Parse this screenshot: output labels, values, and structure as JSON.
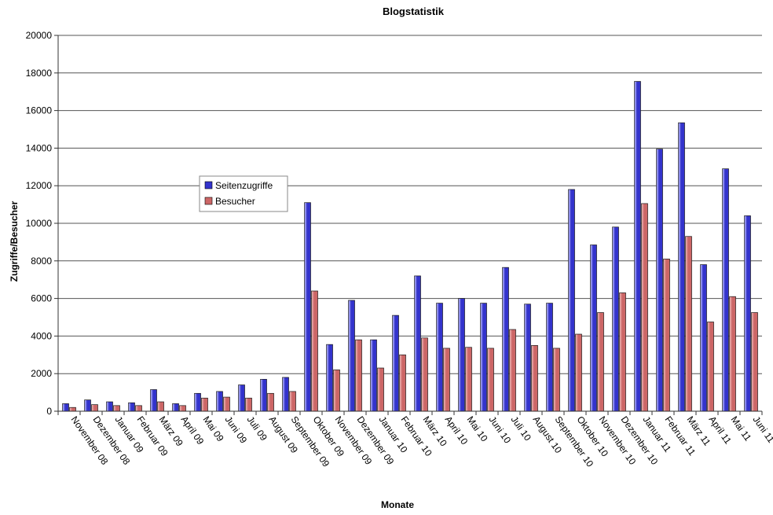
{
  "chart_data": {
    "type": "bar",
    "title": "Blogstatistik",
    "xlabel": "Monate",
    "ylabel": "Zugriffe/Besucher",
    "ylim": [
      0,
      20000
    ],
    "yticks": [
      0,
      2000,
      4000,
      6000,
      8000,
      10000,
      12000,
      14000,
      16000,
      18000,
      20000
    ],
    "grid": true,
    "legend_position": "middle-left",
    "categories": [
      "November 08",
      "Dezember 08",
      "Januar 09",
      "Februar 09",
      "März 09",
      "April 09",
      "Mai 09",
      "Juni 09",
      "Juli 09",
      "August 09",
      "September 09",
      "Oktober 09",
      "November 09",
      "Dezember 09",
      "Januar 10",
      "Februar 10",
      "März 10",
      "April 10",
      "Mai 10",
      "Juni 10",
      "Juli 10",
      "August 10",
      "September 10",
      "Oktober 10",
      "November 10",
      "Dezember 10",
      "Januar 11",
      "Februar 11",
      "März 11",
      "April 11",
      "Mai 11",
      "Juni 11"
    ],
    "series": [
      {
        "name": "Seitenzugriffe",
        "color": "#3333cc",
        "values": [
          400,
          600,
          500,
          450,
          1150,
          400,
          950,
          1050,
          1400,
          1700,
          1800,
          11100,
          3550,
          5900,
          3800,
          5100,
          7200,
          5750,
          6000,
          5750,
          7650,
          5700,
          5750,
          11800,
          8850,
          9800,
          17550,
          13950,
          15350,
          7800,
          12900,
          10400
        ]
      },
      {
        "name": "Besucher",
        "color": "#cc6666",
        "values": [
          200,
          350,
          300,
          300,
          500,
          300,
          700,
          750,
          700,
          950,
          1050,
          6400,
          2200,
          3800,
          2300,
          3000,
          3900,
          3350,
          3400,
          3350,
          4350,
          3500,
          3350,
          4100,
          5250,
          6300,
          11050,
          8100,
          9300,
          4750,
          6100,
          5250
        ]
      }
    ]
  }
}
